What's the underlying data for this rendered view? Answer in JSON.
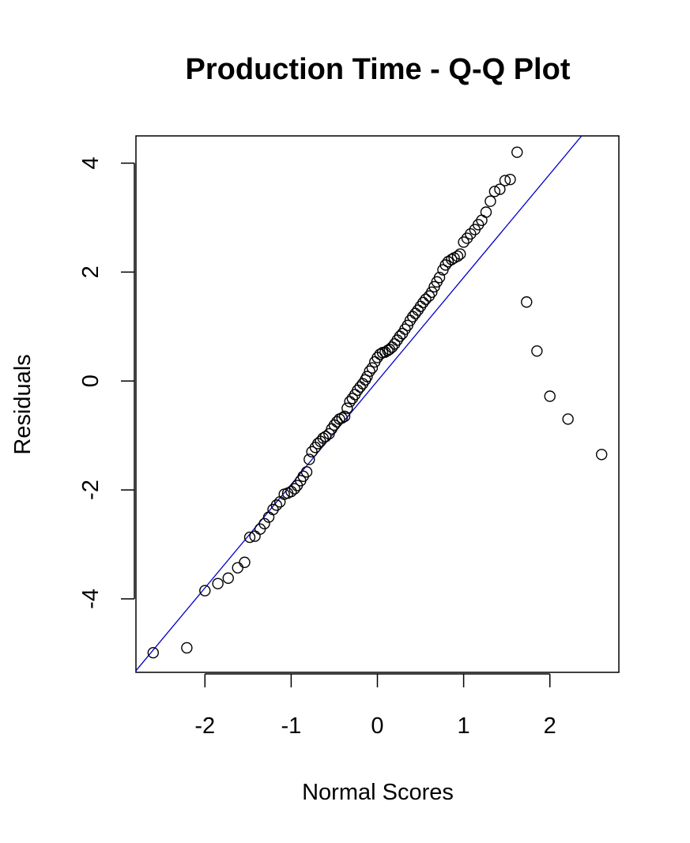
{
  "chart_data": {
    "type": "scatter",
    "title": "Production Time - Q-Q Plot",
    "xlabel": "Normal Scores",
    "ylabel": "Residuals",
    "xlim": [
      -2.8,
      2.8
    ],
    "ylim": [
      -5.35,
      4.5
    ],
    "xticks": [
      -2,
      -1,
      0,
      1,
      2
    ],
    "yticks": [
      -4,
      -2,
      0,
      2,
      4
    ],
    "point_style": "open-circle",
    "reference_line": {
      "intercept": 0.0,
      "slope": 1.9,
      "color": "#0000cc"
    },
    "x": [
      -2.6,
      -2.21,
      -2.0,
      -1.85,
      -1.73,
      -1.62,
      -1.54,
      -1.48,
      -1.42,
      -1.36,
      -1.31,
      -1.26,
      -1.21,
      -1.17,
      -1.13,
      -1.08,
      -1.04,
      -1.0,
      -0.96,
      -0.93,
      -0.89,
      -0.86,
      -0.82,
      -0.79,
      -0.76,
      -0.72,
      -0.69,
      -0.66,
      -0.63,
      -0.6,
      -0.56,
      -0.53,
      -0.5,
      -0.47,
      -0.44,
      -0.41,
      -0.38,
      -0.35,
      -0.32,
      -0.29,
      -0.26,
      -0.23,
      -0.2,
      -0.17,
      -0.14,
      -0.12,
      -0.09,
      -0.06,
      -0.03,
      0.0,
      0.03,
      0.06,
      0.09,
      0.12,
      0.14,
      0.17,
      0.2,
      0.23,
      0.26,
      0.29,
      0.32,
      0.35,
      0.38,
      0.41,
      0.44,
      0.47,
      0.5,
      0.53,
      0.56,
      0.6,
      0.63,
      0.66,
      0.69,
      0.72,
      0.76,
      0.79,
      0.82,
      0.86,
      0.89,
      0.93,
      0.96,
      1.0,
      1.04,
      1.08,
      1.13,
      1.17,
      1.21,
      1.26,
      1.31,
      1.36,
      1.42,
      1.48,
      1.54,
      1.62,
      1.73,
      1.85,
      2.0,
      2.21,
      2.6
    ],
    "y": [
      -4.99,
      -4.9,
      -3.85,
      -3.72,
      -3.62,
      -3.43,
      -3.33,
      -2.87,
      -2.85,
      -2.72,
      -2.62,
      -2.5,
      -2.36,
      -2.28,
      -2.22,
      -2.08,
      -2.06,
      -2.03,
      -1.98,
      -1.92,
      -1.83,
      -1.75,
      -1.67,
      -1.44,
      -1.3,
      -1.22,
      -1.15,
      -1.11,
      -1.05,
      -1.02,
      -0.97,
      -0.88,
      -0.81,
      -0.75,
      -0.7,
      -0.68,
      -0.65,
      -0.5,
      -0.38,
      -0.32,
      -0.25,
      -0.17,
      -0.11,
      -0.05,
      0.02,
      0.08,
      0.18,
      0.24,
      0.35,
      0.43,
      0.49,
      0.52,
      0.53,
      0.56,
      0.58,
      0.62,
      0.68,
      0.75,
      0.82,
      0.87,
      0.95,
      1.02,
      1.11,
      1.18,
      1.24,
      1.3,
      1.37,
      1.44,
      1.5,
      1.56,
      1.63,
      1.73,
      1.82,
      1.9,
      2.04,
      2.13,
      2.19,
      2.23,
      2.26,
      2.29,
      2.33,
      2.55,
      2.62,
      2.7,
      2.78,
      2.87,
      2.95,
      3.1,
      3.3,
      3.48,
      3.52,
      3.68,
      3.7,
      4.2,
      1.45,
      0.55,
      -0.28,
      -0.7,
      -1.35
    ]
  }
}
